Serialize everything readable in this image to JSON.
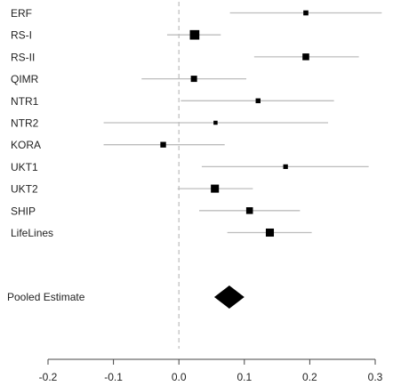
{
  "chart_data": {
    "type": "forest",
    "title": "",
    "xlabel": "",
    "ylabel": "",
    "xlim": [
      -0.2,
      0.3
    ],
    "xticks": [
      -0.2,
      -0.1,
      0.0,
      0.1,
      0.2,
      0.3
    ],
    "xtick_labels": [
      "-0.2",
      "-0.1",
      "0.0",
      "0.1",
      "0.2",
      "0.3"
    ],
    "reference_line": 0.0,
    "grid": false,
    "colors": {
      "ci": "#bdbdbd",
      "marker": "#000000",
      "reference": "#bdbdbd",
      "axis": "#444444"
    },
    "studies": [
      {
        "name": "ERF",
        "estimate": 0.194,
        "lower": 0.078,
        "upper": 0.31,
        "weight": 0.6
      },
      {
        "name": "RS-I",
        "estimate": 0.024,
        "lower": -0.018,
        "upper": 0.064,
        "weight": 2.6
      },
      {
        "name": "RS-II",
        "estimate": 0.194,
        "lower": 0.115,
        "upper": 0.275,
        "weight": 1.2
      },
      {
        "name": "QIMR",
        "estimate": 0.023,
        "lower": -0.057,
        "upper": 0.103,
        "weight": 1.0
      },
      {
        "name": "NTR1",
        "estimate": 0.121,
        "lower": 0.003,
        "upper": 0.237,
        "weight": 0.55
      },
      {
        "name": "NTR2",
        "estimate": 0.056,
        "lower": -0.115,
        "upper": 0.228,
        "weight": 0.35
      },
      {
        "name": "KORA",
        "estimate": -0.024,
        "lower": -0.115,
        "upper": 0.07,
        "weight": 0.8
      },
      {
        "name": "UKT1",
        "estimate": 0.163,
        "lower": 0.035,
        "upper": 0.29,
        "weight": 0.5
      },
      {
        "name": "UKT2",
        "estimate": 0.055,
        "lower": -0.002,
        "upper": 0.113,
        "weight": 1.8
      },
      {
        "name": "SHIP",
        "estimate": 0.108,
        "lower": 0.031,
        "upper": 0.185,
        "weight": 1.2
      },
      {
        "name": "LifeLines",
        "estimate": 0.139,
        "lower": 0.074,
        "upper": 0.203,
        "weight": 1.8
      }
    ],
    "pooled": {
      "name": "Pooled Estimate",
      "estimate": 0.077,
      "lower": 0.054,
      "upper": 0.1
    }
  }
}
